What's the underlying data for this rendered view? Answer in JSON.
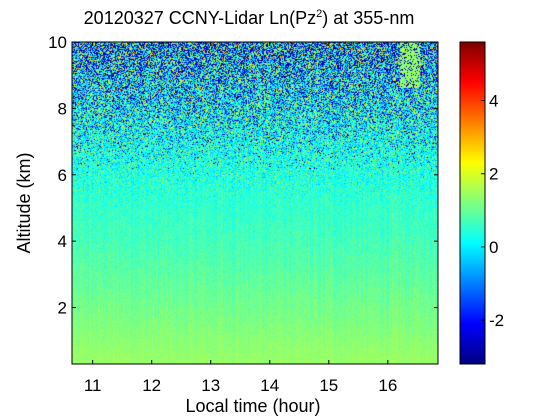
{
  "chart_data": {
    "type": "heatmap",
    "title": {
      "prefix": "20120327 CCNY-Lidar Ln(Pz",
      "superscript": "2",
      "suffix": ") at 355-nm"
    },
    "xlabel": "Local time (hour)",
    "ylabel": "Altitude (km)",
    "xlim": [
      10.65,
      16.85
    ],
    "ylim": [
      0.3,
      10
    ],
    "xticks": [
      11,
      12,
      13,
      14,
      15,
      16
    ],
    "yticks": [
      2,
      4,
      6,
      8,
      10
    ],
    "xtick_labels": [
      "11",
      "12",
      "13",
      "14",
      "15",
      "16"
    ],
    "ytick_labels": [
      "2",
      "4",
      "6",
      "8",
      "10"
    ],
    "colorbar": {
      "colormap": "jet",
      "range": [
        -3.2,
        5.6
      ],
      "ticks": [
        -2,
        0,
        2,
        4
      ],
      "tick_labels": [
        "-2",
        "0",
        "2",
        "4"
      ]
    },
    "approx_profile": [
      {
        "altitude_km": 0.5,
        "value": 1.4
      },
      {
        "altitude_km": 2,
        "value": 1.1
      },
      {
        "altitude_km": 4,
        "value": 0.7
      },
      {
        "altitude_km": 6,
        "value": 0.4
      },
      {
        "altitude_km": 8,
        "value": 0.2
      },
      {
        "altitude_km": 10,
        "value": 0.1
      }
    ],
    "noise_onset_km": 5.0,
    "aerosol_feature": {
      "time_hour": [
        16.2,
        16.55
      ],
      "altitude_km": [
        8.6,
        10
      ],
      "value": 1.4
    }
  }
}
